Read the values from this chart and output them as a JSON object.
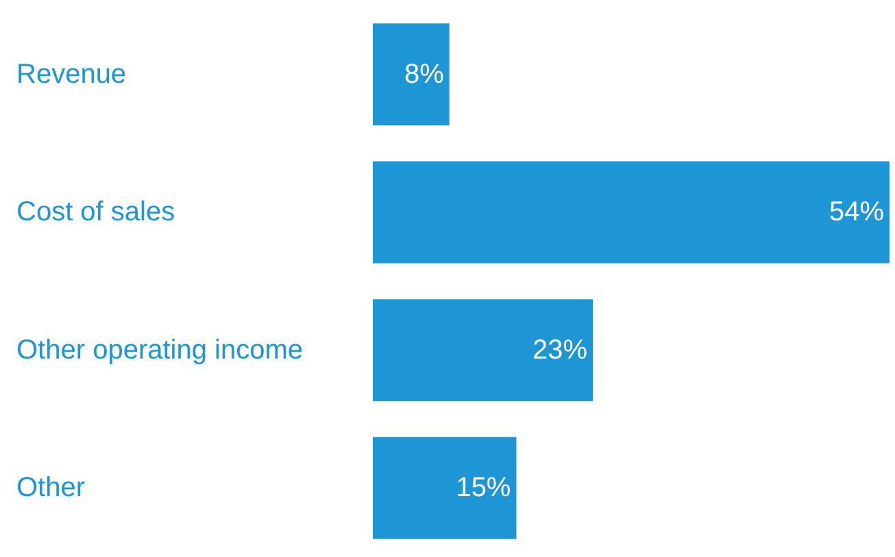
{
  "chart_data": {
    "type": "bar",
    "orientation": "horizontal",
    "categories": [
      "Revenue",
      "Cost of sales",
      "Other operating income",
      "Other"
    ],
    "values": [
      8,
      54,
      23,
      15
    ],
    "value_labels": [
      "8%",
      "54%",
      "23%",
      "15%"
    ],
    "color": "#1e95d4"
  }
}
